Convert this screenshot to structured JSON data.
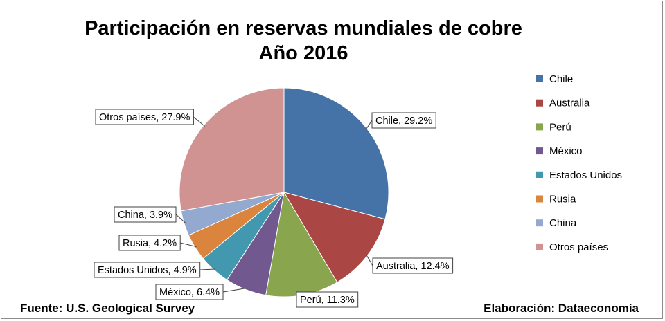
{
  "chart_data": {
    "type": "pie",
    "title": "Participación en reservas mundiales de cobre",
    "subtitle": "Año 2016",
    "unit": "%",
    "legend_position": "right",
    "slices": [
      {
        "label": "Chile",
        "value": 29.2,
        "display": "Chile, 29.2%",
        "color": "#4572A7"
      },
      {
        "label": "Australia",
        "value": 12.4,
        "display": "Australia, 12.4%",
        "color": "#AA4643"
      },
      {
        "label": "Perú",
        "value": 11.3,
        "display": "Perú, 11.3%",
        "color": "#89A54E"
      },
      {
        "label": "México",
        "value": 6.4,
        "display": "México, 6.4%",
        "color": "#71588F"
      },
      {
        "label": "Estados Unidos",
        "value": 4.9,
        "display": "Estados Unidos, 4.9%",
        "color": "#4198AF"
      },
      {
        "label": "Rusia",
        "value": 4.2,
        "display": "Rusia, 4.2%",
        "color": "#DB843D"
      },
      {
        "label": "China",
        "value": 3.9,
        "display": "China, 3.9%",
        "color": "#93A9CF"
      },
      {
        "label": "Otros países",
        "value": 27.9,
        "display": "Otros países, 27.9%",
        "color": "#D19392"
      }
    ]
  },
  "footer": {
    "source": "Fuente: U.S. Geological Survey",
    "credit": "Elaboración: Dataeconomía"
  }
}
